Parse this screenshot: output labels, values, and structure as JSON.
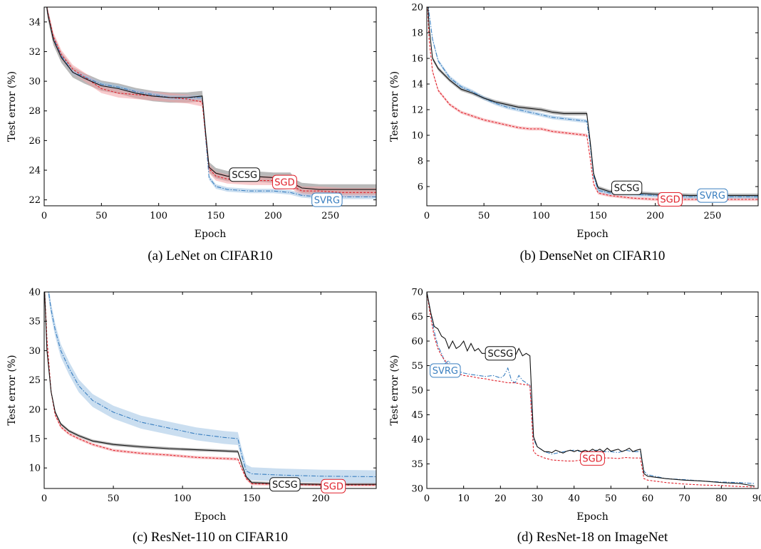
{
  "colors": {
    "scsg": "#111111",
    "sgd": "#e0202a",
    "svrg": "#3a7fc0"
  },
  "chart_data": [
    {
      "type": "line",
      "caption": "(a) LeNet on CIFAR10",
      "xlabel": "Epoch",
      "ylabel": "Test error (%)",
      "xlim": [
        0,
        290
      ],
      "ylim": [
        21.6,
        35
      ],
      "xticks": [
        0,
        50,
        100,
        150,
        200,
        250
      ],
      "yticks": [
        22,
        24,
        26,
        28,
        30,
        32,
        34
      ],
      "grid": false,
      "series": [
        {
          "name": "SCSG",
          "style": "solid",
          "band": 0.35,
          "x": [
            0,
            3,
            8,
            15,
            25,
            35,
            50,
            65,
            80,
            95,
            110,
            125,
            138,
            141,
            144,
            150,
            160,
            180,
            200,
            215,
            220,
            225,
            240,
            260,
            290
          ],
          "y": [
            36.5,
            34.6,
            32.8,
            31.6,
            30.6,
            30.2,
            29.7,
            29.5,
            29.2,
            29.0,
            28.9,
            28.9,
            29.0,
            26.5,
            24.2,
            23.8,
            23.6,
            23.6,
            23.5,
            23.5,
            23.0,
            22.8,
            22.7,
            22.7,
            22.7
          ]
        },
        {
          "name": "SGD",
          "style": "dashed",
          "band": 0.3,
          "x": [
            0,
            3,
            8,
            15,
            25,
            35,
            50,
            65,
            80,
            95,
            110,
            125,
            138,
            141,
            144,
            150,
            160,
            180,
            200,
            215,
            220,
            225,
            240,
            260,
            290
          ],
          "y": [
            36.5,
            34.7,
            33.0,
            31.8,
            30.8,
            30.3,
            29.5,
            29.2,
            29.1,
            29.0,
            28.9,
            28.8,
            28.6,
            26.3,
            24.1,
            23.6,
            23.4,
            23.3,
            23.3,
            23.2,
            22.8,
            22.6,
            22.6,
            22.5,
            22.5
          ]
        },
        {
          "name": "SVRG",
          "style": "dashdot",
          "band": 0.15,
          "x": [
            0,
            3,
            8,
            15,
            25,
            35,
            50,
            65,
            80,
            95,
            110,
            125,
            138,
            141,
            144,
            150,
            160,
            180,
            200,
            215,
            220,
            225,
            240,
            260,
            290
          ],
          "y": [
            36.5,
            34.6,
            32.9,
            31.7,
            30.6,
            30.3,
            29.8,
            29.6,
            29.3,
            29.1,
            28.9,
            28.9,
            28.9,
            26.2,
            23.5,
            22.9,
            22.7,
            22.6,
            22.6,
            22.5,
            22.4,
            22.3,
            22.2,
            22.2,
            22.2
          ]
        }
      ],
      "annotations": [
        {
          "text": "SCSG",
          "series": "SCSG",
          "x": 175,
          "y": 23.7
        },
        {
          "text": "SGD",
          "series": "SGD",
          "x": 210,
          "y": 23.2
        },
        {
          "text": "SVRG",
          "series": "SVRG",
          "x": 247,
          "y": 22.0
        }
      ]
    },
    {
      "type": "line",
      "caption": "(b) DenseNet on CIFAR10",
      "xlabel": "Epoch",
      "ylabel": "Test error (%)",
      "xlim": [
        0,
        290
      ],
      "ylim": [
        4.5,
        20
      ],
      "xticks": [
        0,
        50,
        100,
        150,
        200,
        250
      ],
      "yticks": [
        6,
        8,
        10,
        12,
        14,
        16,
        18,
        20
      ],
      "grid": false,
      "series": [
        {
          "name": "SCSG",
          "style": "solid",
          "band": 0.15,
          "x": [
            0,
            2,
            5,
            10,
            20,
            30,
            40,
            50,
            60,
            70,
            80,
            90,
            100,
            110,
            120,
            130,
            140,
            143,
            146,
            150,
            160,
            180,
            200,
            230,
            260,
            290
          ],
          "y": [
            21.5,
            18.5,
            16.0,
            15.2,
            14.3,
            13.6,
            13.3,
            12.9,
            12.6,
            12.4,
            12.2,
            12.1,
            12.0,
            11.8,
            11.7,
            11.7,
            11.7,
            9.5,
            7.0,
            5.9,
            5.6,
            5.5,
            5.4,
            5.3,
            5.3,
            5.3
          ]
        },
        {
          "name": "SGD",
          "style": "dashed",
          "band": 0.12,
          "x": [
            0,
            2,
            5,
            10,
            20,
            30,
            40,
            50,
            60,
            70,
            80,
            90,
            100,
            110,
            120,
            130,
            140,
            143,
            146,
            150,
            160,
            180,
            200,
            230,
            260,
            290
          ],
          "y": [
            21.5,
            17.5,
            15.0,
            13.5,
            12.4,
            11.8,
            11.5,
            11.2,
            11.0,
            10.8,
            10.6,
            10.5,
            10.5,
            10.3,
            10.2,
            10.1,
            10.0,
            8.2,
            6.2,
            5.5,
            5.3,
            5.1,
            5.0,
            5.0,
            5.0,
            5.0
          ]
        },
        {
          "name": "SVRG",
          "style": "dashdot",
          "band": 0.15,
          "x": [
            0,
            2,
            5,
            10,
            20,
            30,
            40,
            50,
            60,
            70,
            80,
            90,
            100,
            110,
            120,
            130,
            140,
            143,
            146,
            150,
            160,
            180,
            200,
            230,
            260,
            290
          ],
          "y": [
            21.5,
            19.5,
            17.5,
            15.8,
            14.5,
            13.8,
            13.4,
            12.9,
            12.5,
            12.2,
            12.0,
            11.8,
            11.6,
            11.4,
            11.3,
            11.2,
            11.1,
            9.2,
            6.8,
            5.7,
            5.5,
            5.4,
            5.3,
            5.2,
            5.2,
            5.2
          ]
        }
      ],
      "annotations": [
        {
          "text": "SCSG",
          "series": "SCSG",
          "x": 175,
          "y": 5.9
        },
        {
          "text": "SGD",
          "series": "SGD",
          "x": 213,
          "y": 5.0
        },
        {
          "text": "SVRG",
          "series": "SVRG",
          "x": 250,
          "y": 5.3
        }
      ]
    },
    {
      "type": "line",
      "caption": "(c) ResNet-110 on CIFAR10",
      "xlabel": "Epoch",
      "ylabel": "Test error (%)",
      "xlim": [
        0,
        240
      ],
      "ylim": [
        6.5,
        40
      ],
      "xticks": [
        0,
        50,
        100,
        150,
        200
      ],
      "yticks": [
        10,
        15,
        20,
        25,
        30,
        35,
        40
      ],
      "grid": false,
      "series": [
        {
          "name": "SCSG",
          "style": "solid",
          "band": 0.25,
          "x": [
            0,
            2,
            5,
            8,
            12,
            18,
            25,
            35,
            50,
            70,
            90,
            110,
            130,
            140,
            143,
            146,
            150,
            170,
            200,
            240
          ],
          "y": [
            42,
            30,
            23,
            19.5,
            17.5,
            16.3,
            15.5,
            14.6,
            14.0,
            13.6,
            13.3,
            13.1,
            12.9,
            12.8,
            10.5,
            8.5,
            7.5,
            7.3,
            7.2,
            7.2
          ]
        },
        {
          "name": "SGD",
          "style": "dashed",
          "band": 0.25,
          "x": [
            0,
            2,
            5,
            8,
            12,
            18,
            25,
            35,
            50,
            70,
            90,
            110,
            130,
            140,
            143,
            146,
            150,
            170,
            200,
            240
          ],
          "y": [
            42,
            32,
            23,
            19,
            17,
            15.8,
            15.0,
            14.0,
            13.0,
            12.5,
            12.2,
            11.8,
            11.6,
            11.5,
            9.8,
            8.2,
            7.3,
            7.2,
            7.1,
            7.1
          ]
        },
        {
          "name": "SVRG",
          "style": "dashdot",
          "band": 1.1,
          "x": [
            0,
            2,
            5,
            8,
            12,
            18,
            25,
            35,
            50,
            70,
            90,
            110,
            130,
            140,
            143,
            146,
            150,
            170,
            200,
            240
          ],
          "y": [
            48,
            42,
            37,
            33.5,
            30,
            27,
            24,
            21.5,
            19.5,
            17.8,
            16.8,
            15.8,
            15.2,
            15.0,
            12.0,
            9.5,
            9.0,
            8.8,
            8.6,
            8.5
          ]
        }
      ],
      "annotations": [
        {
          "text": "SCSG",
          "series": "SCSG",
          "x": 174,
          "y": 7.2
        },
        {
          "text": "SGD",
          "series": "SGD",
          "x": 209,
          "y": 6.9
        }
      ]
    },
    {
      "type": "line",
      "caption": "(d) ResNet-18 on ImageNet",
      "xlabel": "Epoch",
      "ylabel": "Test error (%)",
      "xlim": [
        0,
        90
      ],
      "ylim": [
        30,
        70
      ],
      "xticks": [
        0,
        10,
        20,
        30,
        40,
        50,
        60,
        70,
        80,
        90
      ],
      "yticks": [
        30,
        35,
        40,
        45,
        50,
        55,
        60,
        65,
        70
      ],
      "grid": false,
      "series": [
        {
          "name": "SCSG",
          "style": "solid",
          "band": 0,
          "x": [
            0,
            1,
            2,
            3,
            4,
            5,
            6,
            7,
            8,
            9,
            10,
            11,
            12,
            13,
            14,
            15,
            16,
            17,
            18,
            19,
            20,
            21,
            22,
            23,
            24,
            25,
            26,
            27,
            28,
            29,
            30,
            31,
            32,
            33,
            34,
            35,
            36,
            37,
            38,
            39,
            40,
            41,
            42,
            43,
            44,
            45,
            46,
            47,
            48,
            49,
            50,
            51,
            52,
            53,
            54,
            55,
            56,
            57,
            58,
            59,
            60,
            65,
            70,
            75,
            80,
            85,
            89
          ],
          "y": [
            70,
            66,
            63,
            62.5,
            61,
            60.5,
            58.5,
            60,
            58.5,
            59,
            60,
            58,
            59.5,
            58,
            58.5,
            57.5,
            57.5,
            58.5,
            57.5,
            58,
            57,
            58.5,
            57,
            58,
            57,
            58.5,
            57,
            57.5,
            57,
            40.5,
            38.5,
            38,
            37.5,
            37.5,
            37.3,
            37.8,
            37.5,
            37.2,
            37.6,
            37.8,
            37.5,
            37.8,
            37.5,
            37.8,
            37.5,
            38,
            37.6,
            38,
            37.5,
            38.2,
            37.6,
            37.8,
            38,
            37.5,
            37.8,
            38.2,
            37.5,
            37.8,
            38,
            33,
            32.5,
            32,
            31.7,
            31.5,
            31.2,
            31,
            30.5
          ]
        },
        {
          "name": "SGD",
          "style": "dashed",
          "band": 0,
          "x": [
            0,
            1,
            2,
            3,
            4,
            5,
            6,
            7,
            8,
            10,
            12,
            14,
            16,
            18,
            20,
            22,
            24,
            26,
            28,
            29,
            30,
            32,
            34,
            36,
            38,
            40,
            42,
            44,
            46,
            48,
            50,
            52,
            54,
            56,
            58,
            59,
            60,
            65,
            70,
            75,
            80,
            85,
            89
          ],
          "y": [
            70,
            65,
            61,
            58.5,
            57,
            56,
            55,
            54,
            53.5,
            53,
            52.8,
            52.5,
            52.3,
            52,
            51.8,
            51.5,
            51.5,
            51.2,
            51,
            37.5,
            36.8,
            36.2,
            35.8,
            35.7,
            35.6,
            35.6,
            35.8,
            36,
            36.1,
            36.2,
            36.2,
            36.1,
            36.3,
            36.2,
            36.2,
            32,
            31.7,
            31.2,
            30.9,
            30.7,
            30.6,
            30.4,
            30.3
          ]
        },
        {
          "name": "SVRG",
          "style": "dashdot",
          "band": 0,
          "x": [
            0,
            1,
            2,
            3,
            4,
            5,
            6,
            7,
            8,
            10,
            12,
            14,
            16,
            18,
            20,
            21,
            22,
            23,
            24,
            25,
            26,
            27,
            28,
            29,
            30,
            32,
            34,
            36,
            38,
            40,
            42,
            44,
            46,
            48,
            50,
            52,
            54,
            56,
            58,
            59,
            60,
            65,
            70,
            75,
            80,
            85,
            89
          ],
          "y": [
            70,
            66,
            62,
            59,
            57.5,
            55.5,
            56,
            54.5,
            54,
            53.5,
            53.2,
            53,
            52.8,
            53,
            52.5,
            53,
            54.5,
            52,
            51.5,
            53,
            52,
            51.5,
            51,
            40,
            38.5,
            37.5,
            37,
            37.3,
            37.6,
            37.8,
            37.5,
            37.5,
            37.8,
            37.5,
            37.5,
            37.3,
            37.8,
            37.5,
            37.5,
            33.5,
            32.8,
            32,
            31.8,
            31.5,
            31.3,
            31.2,
            31
          ]
        }
      ],
      "annotations": [
        {
          "text": "SCSG",
          "series": "SCSG",
          "x": 20,
          "y": 57.5
        },
        {
          "text": "SVRG",
          "series": "SVRG",
          "x": 5,
          "y": 54
        },
        {
          "text": "SGD",
          "series": "SGD",
          "x": 45,
          "y": 36.1
        }
      ]
    }
  ]
}
